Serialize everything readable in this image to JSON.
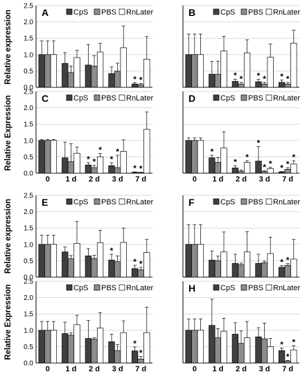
{
  "legend": {
    "series": [
      "CpS",
      "PBS",
      "RnLater"
    ]
  },
  "colors": {
    "CpS": "#404040",
    "PBS": "#8c8c8c",
    "RnLater": "#ffffff",
    "axis": "#000000",
    "grid": "#d9d9d9"
  },
  "ylabels": {
    "row1": "Relative expression",
    "row2": "Relative Expression",
    "row3": "Relative expression",
    "row4": "Relative Expression"
  },
  "xtick_labels": [
    "0",
    "1 d",
    "2 d",
    "3 d",
    "7 d"
  ],
  "ytick_labels": [
    "0.0",
    "0.5",
    "1.0",
    "1.5",
    "2.0",
    "2.5"
  ],
  "chart_data": [
    {
      "type": "bar",
      "panel_label": "A",
      "categories": [
        "0",
        "1 d",
        "2 d",
        "3 d",
        "7 d"
      ],
      "ylim": [
        0,
        2.5
      ],
      "grid": true,
      "legend": "top-right",
      "series": [
        {
          "name": "CpS",
          "values": [
            1.0,
            0.73,
            0.68,
            0.42,
            0.1
          ],
          "errors": [
            0.42,
            0.33,
            0.62,
            0.2,
            0.04
          ],
          "sig": [
            false,
            false,
            false,
            false,
            true
          ]
        },
        {
          "name": "PBS",
          "values": [
            1.0,
            0.45,
            0.65,
            0.49,
            0.08
          ],
          "errors": [
            0.42,
            0.2,
            0.32,
            0.25,
            0.04
          ],
          "sig": [
            false,
            false,
            false,
            false,
            true
          ]
        },
        {
          "name": "RnLater",
          "values": [
            1.0,
            0.91,
            1.08,
            1.21,
            0.86
          ],
          "errors": [
            0.42,
            0.22,
            0.26,
            0.67,
            0.69
          ],
          "sig": [
            false,
            false,
            false,
            false,
            false
          ]
        }
      ]
    },
    {
      "type": "bar",
      "panel_label": "B",
      "categories": [
        "0",
        "1 d",
        "2 d",
        "3 d",
        "7 d"
      ],
      "ylim": [
        0,
        2.5
      ],
      "grid": true,
      "legend": "top-right",
      "series": [
        {
          "name": "CpS",
          "values": [
            1.0,
            0.4,
            0.18,
            0.17,
            0.15
          ],
          "errors": [
            0.63,
            0.39,
            0.07,
            0.07,
            0.07
          ],
          "sig": [
            false,
            false,
            true,
            true,
            true
          ]
        },
        {
          "name": "PBS",
          "values": [
            1.0,
            0.4,
            0.1,
            0.1,
            0.1
          ],
          "errors": [
            0.63,
            0.4,
            0.05,
            0.05,
            0.05
          ],
          "sig": [
            false,
            false,
            true,
            true,
            true
          ]
        },
        {
          "name": "RnLater",
          "values": [
            1.0,
            1.11,
            1.05,
            0.92,
            1.35
          ],
          "errors": [
            0.63,
            0.45,
            0.4,
            0.4,
            0.4
          ],
          "sig": [
            false,
            false,
            false,
            false,
            false
          ]
        }
      ]
    },
    {
      "type": "bar",
      "panel_label": "C",
      "categories": [
        "0",
        "1 d",
        "2 d",
        "3 d",
        "7 d"
      ],
      "ylim": [
        0,
        2.5
      ],
      "grid": true,
      "legend": "top-right",
      "series": [
        {
          "name": "CpS",
          "values": [
            1.0,
            0.47,
            0.25,
            0.23,
            0.03
          ],
          "errors": [
            0.03,
            0.48,
            0.07,
            0.09,
            0.01
          ],
          "sig": [
            false,
            false,
            true,
            true,
            true
          ]
        },
        {
          "name": "PBS",
          "values": [
            1.0,
            0.35,
            0.17,
            0.17,
            0.02
          ],
          "errors": [
            0.03,
            0.55,
            0.07,
            0.38,
            0.01
          ],
          "sig": [
            false,
            false,
            true,
            true,
            true
          ]
        },
        {
          "name": "RnLater",
          "values": [
            1.0,
            0.61,
            0.5,
            0.67,
            1.34
          ],
          "errors": [
            0.03,
            0.19,
            0.1,
            0.35,
            0.53
          ],
          "sig": [
            false,
            false,
            true,
            false,
            false
          ]
        }
      ]
    },
    {
      "type": "bar",
      "panel_label": "D",
      "categories": [
        "0",
        "1 d",
        "2 d",
        "3 d",
        "7 d"
      ],
      "ylim": [
        0,
        2.5
      ],
      "grid": true,
      "legend": "top-right",
      "series": [
        {
          "name": "CpS",
          "values": [
            1.0,
            0.47,
            0.16,
            0.37,
            0.04
          ],
          "errors": [
            0.08,
            0.08,
            0.07,
            0.45,
            0.01
          ],
          "sig": [
            false,
            true,
            true,
            true,
            true
          ]
        },
        {
          "name": "PBS",
          "values": [
            1.0,
            0.33,
            0.06,
            0.05,
            0.12
          ],
          "errors": [
            0.08,
            0.15,
            0.04,
            0.02,
            0.05
          ],
          "sig": [
            false,
            false,
            false,
            true,
            true
          ]
        },
        {
          "name": "RnLater",
          "values": [
            1.0,
            0.77,
            0.33,
            0.14,
            0.28
          ],
          "errors": [
            0.08,
            0.5,
            0.05,
            0.04,
            0.1
          ],
          "sig": [
            false,
            false,
            true,
            true,
            true
          ]
        }
      ]
    },
    {
      "type": "bar",
      "panel_label": "E",
      "categories": [
        "0",
        "1 d",
        "2 d",
        "3 d",
        "7 d"
      ],
      "ylim": [
        0,
        2.5
      ],
      "grid": true,
      "legend": "top-right",
      "series": [
        {
          "name": "CpS",
          "values": [
            1.0,
            0.77,
            0.65,
            0.52,
            0.26
          ],
          "errors": [
            0.28,
            0.15,
            0.22,
            0.18,
            0.1
          ],
          "sig": [
            false,
            false,
            false,
            true,
            true
          ]
        },
        {
          "name": "PBS",
          "values": [
            1.0,
            0.56,
            0.57,
            0.47,
            0.22
          ],
          "errors": [
            0.28,
            0.1,
            0.1,
            0.18,
            0.08
          ],
          "sig": [
            false,
            false,
            false,
            false,
            true
          ]
        },
        {
          "name": "RnLater",
          "values": [
            1.0,
            1.03,
            1.05,
            1.06,
            0.75
          ],
          "errors": [
            0.28,
            0.67,
            0.38,
            0.44,
            0.4
          ],
          "sig": [
            false,
            false,
            false,
            false,
            false
          ]
        }
      ]
    },
    {
      "type": "bar",
      "panel_label": "F",
      "categories": [
        "0",
        "1 d",
        "2 d",
        "3 d",
        "7 d"
      ],
      "ylim": [
        0,
        2.5
      ],
      "grid": true,
      "legend": "top-right",
      "series": [
        {
          "name": "CpS",
          "values": [
            1.0,
            0.52,
            0.42,
            0.42,
            0.3
          ],
          "errors": [
            0.6,
            0.28,
            0.28,
            0.28,
            0.05
          ],
          "sig": [
            false,
            false,
            false,
            false,
            true
          ]
        },
        {
          "name": "PBS",
          "values": [
            1.0,
            0.5,
            0.38,
            0.44,
            0.36
          ],
          "errors": [
            0.6,
            0.14,
            0.05,
            0.05,
            0.05
          ],
          "sig": [
            false,
            false,
            false,
            false,
            true
          ]
        },
        {
          "name": "RnLater",
          "values": [
            1.0,
            0.77,
            0.77,
            0.72,
            0.55
          ],
          "errors": [
            0.6,
            0.61,
            0.62,
            0.5,
            0.6
          ],
          "sig": [
            false,
            false,
            false,
            false,
            false
          ]
        }
      ]
    },
    {
      "type": "bar",
      "panel_label": "",
      "categories": [
        "0",
        "1 d",
        "2 d",
        "3 d",
        "7 d"
      ],
      "ylim": [
        0,
        2.5
      ],
      "grid": true,
      "legend": "top-right",
      "series": [
        {
          "name": "CpS",
          "values": [
            1.0,
            0.9,
            0.75,
            0.65,
            0.37
          ],
          "errors": [
            0.27,
            0.35,
            0.55,
            0.23,
            0.12
          ],
          "sig": [
            false,
            false,
            false,
            false,
            true
          ]
        },
        {
          "name": "PBS",
          "values": [
            1.0,
            0.85,
            0.73,
            0.38,
            0.12
          ],
          "errors": [
            0.27,
            0.07,
            0.04,
            0.18,
            0.08
          ],
          "sig": [
            false,
            false,
            false,
            false,
            true
          ]
        },
        {
          "name": "RnLater",
          "values": [
            1.0,
            1.17,
            1.07,
            0.93,
            0.93
          ],
          "errors": [
            0.27,
            0.29,
            0.47,
            0.36,
            0.78
          ],
          "sig": [
            false,
            false,
            false,
            false,
            false
          ]
        }
      ]
    },
    {
      "type": "bar",
      "panel_label": "H",
      "categories": [
        "0",
        "1 d",
        "2 d",
        "3 d",
        "7 d"
      ],
      "ylim": [
        0,
        2.5
      ],
      "grid": true,
      "legend": "top-right",
      "series": [
        {
          "name": "CpS",
          "values": [
            1.0,
            1.15,
            0.88,
            0.8,
            0.38
          ],
          "errors": [
            0.35,
            0.8,
            0.35,
            0.28,
            0.08
          ],
          "sig": [
            false,
            false,
            false,
            false,
            true
          ]
        },
        {
          "name": "PBS",
          "values": [
            1.0,
            0.77,
            0.6,
            0.74,
            0.06
          ],
          "errors": [
            0.35,
            0.28,
            0.38,
            0.48,
            0.02
          ],
          "sig": [
            false,
            false,
            false,
            false,
            true
          ]
        },
        {
          "name": "RnLater",
          "values": [
            1.0,
            0.97,
            0.77,
            0.5,
            0.4
          ],
          "errors": [
            0.35,
            0.4,
            0.5,
            0.25,
            0.13
          ],
          "sig": [
            false,
            false,
            false,
            false,
            true
          ]
        }
      ]
    }
  ]
}
